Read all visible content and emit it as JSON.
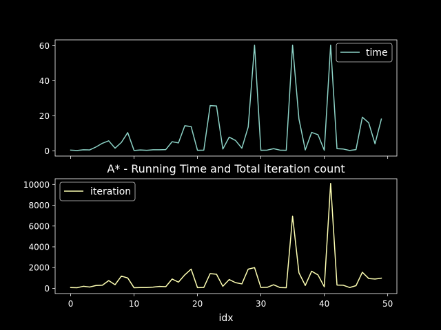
{
  "colors": {
    "background": "#000000",
    "foreground": "#ffffff",
    "time_line": "#8dd3c7",
    "iteration_line": "#feffb3"
  },
  "chart_data": [
    {
      "type": "line",
      "title": "",
      "xlabel": "",
      "ylabel": "",
      "xlim": [
        -2.45,
        51.45
      ],
      "ylim": [
        -3.0,
        63.3
      ],
      "x_ticks": [
        0,
        10,
        20,
        30,
        40,
        50
      ],
      "x_tick_labels_visible": false,
      "y_ticks": [
        0,
        20,
        40,
        60
      ],
      "y_tick_labels": [
        "0",
        "20",
        "40",
        "60"
      ],
      "grid": false,
      "legend": {
        "placement": "top-right",
        "entries": [
          "time"
        ]
      },
      "series": [
        {
          "name": "time",
          "color": "#8dd3c7",
          "x": [
            0,
            1,
            2,
            3,
            4,
            5,
            6,
            7,
            8,
            9,
            10,
            11,
            12,
            13,
            14,
            15,
            16,
            17,
            18,
            19,
            20,
            21,
            22,
            23,
            24,
            25,
            26,
            27,
            28,
            29,
            30,
            31,
            32,
            33,
            34,
            35,
            36,
            37,
            38,
            39,
            40,
            41,
            42,
            43,
            44,
            45,
            46,
            47,
            48,
            49
          ],
          "values": [
            0.4,
            0.2,
            0.6,
            0.5,
            2.2,
            4.3,
            5.7,
            1.5,
            4.8,
            10.4,
            0.2,
            0.5,
            0.3,
            0.6,
            0.6,
            0.7,
            5.2,
            4.5,
            14.3,
            13.8,
            0.3,
            0.4,
            25.8,
            25.6,
            1.0,
            7.8,
            5.9,
            1.5,
            13.6,
            60.3,
            0.3,
            0.4,
            1.2,
            0.4,
            0.3,
            60.3,
            18.2,
            0.5,
            10.5,
            9.2,
            0.3,
            60.3,
            1.2,
            1.0,
            0.2,
            0.7,
            19.2,
            16.0,
            4.0,
            18.1
          ]
        }
      ]
    },
    {
      "type": "line",
      "title": "A* - Running Time and Total iteration count",
      "xlabel": "idx",
      "ylabel": "",
      "xlim": [
        -2.45,
        51.45
      ],
      "ylim": [
        -500,
        10550
      ],
      "x_ticks": [
        0,
        10,
        20,
        30,
        40,
        50
      ],
      "x_tick_labels": [
        "0",
        "10",
        "20",
        "30",
        "40",
        "50"
      ],
      "y_ticks": [
        0,
        2000,
        4000,
        6000,
        8000,
        10000
      ],
      "y_tick_labels": [
        "0",
        "2000",
        "4000",
        "6000",
        "8000",
        "10000"
      ],
      "grid": false,
      "legend": {
        "placement": "top-left",
        "entries": [
          "iteration"
        ]
      },
      "series": [
        {
          "name": "iteration",
          "color": "#feffb3",
          "x": [
            0,
            1,
            2,
            3,
            4,
            5,
            6,
            7,
            8,
            9,
            10,
            11,
            12,
            13,
            14,
            15,
            16,
            17,
            18,
            19,
            20,
            21,
            22,
            23,
            24,
            25,
            26,
            27,
            28,
            29,
            30,
            31,
            32,
            33,
            34,
            35,
            36,
            37,
            38,
            39,
            40,
            41,
            42,
            43,
            44,
            45,
            46,
            47,
            48,
            49
          ],
          "values": [
            80,
            60,
            200,
            130,
            280,
            300,
            750,
            350,
            1180,
            1000,
            60,
            80,
            80,
            120,
            190,
            160,
            900,
            600,
            1300,
            1850,
            70,
            90,
            1420,
            1360,
            200,
            850,
            550,
            430,
            1850,
            2000,
            90,
            100,
            350,
            80,
            60,
            6950,
            1500,
            280,
            1650,
            1300,
            150,
            10100,
            320,
            300,
            80,
            260,
            1550,
            950,
            900,
            980
          ]
        }
      ]
    }
  ]
}
